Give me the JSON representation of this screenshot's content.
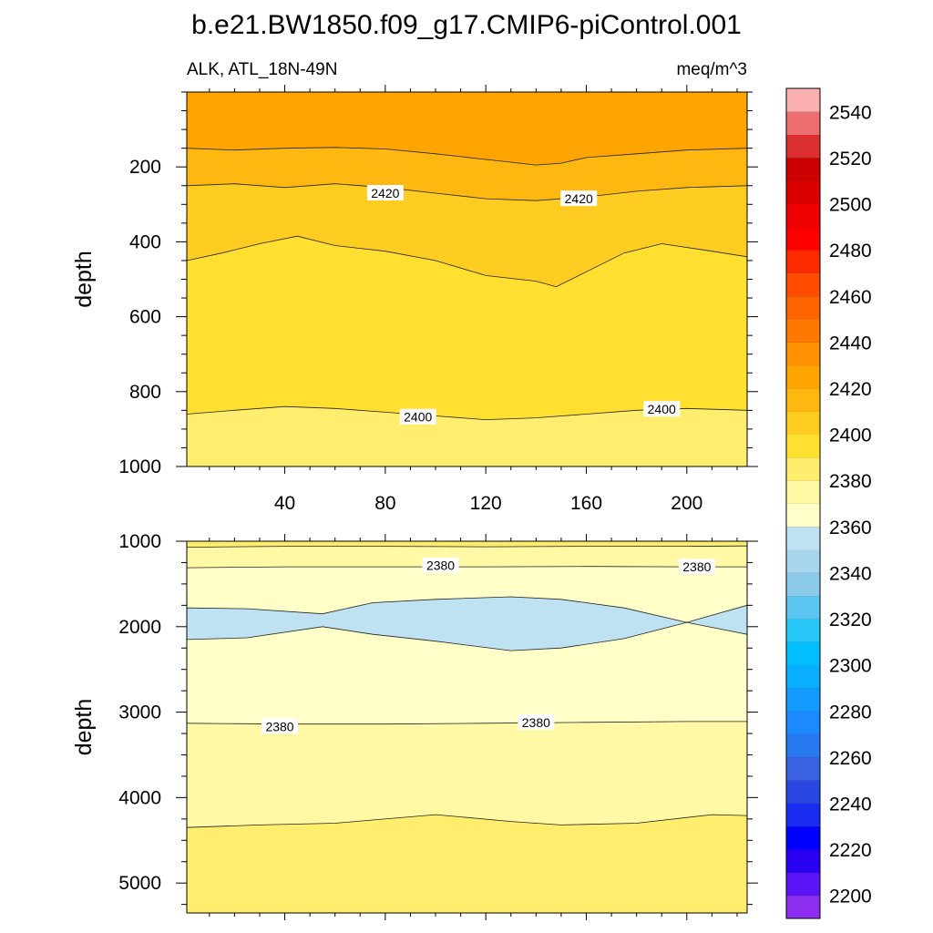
{
  "figure": {
    "title": "b.e21.BW1850.f09_g17.CMIP6-piControl.001",
    "left_string": "ALK, ATL_18N-49N",
    "right_string": "meq/m^3"
  },
  "chart_data": {
    "type": "heatmap",
    "title": "b.e21.BW1850.f09_g17.CMIP6-piControl.001",
    "subtitle_left": "ALK, ATL_18N-49N",
    "units": "meq/m^3",
    "x_range": [
      1,
      224
    ],
    "x_ticks": [
      40,
      80,
      120,
      160,
      200
    ],
    "x_tick_labels": [
      "40",
      "80",
      "120",
      "160",
      "200"
    ],
    "colorbar": {
      "levels": [
        2200,
        2210,
        2220,
        2230,
        2240,
        2250,
        2260,
        2270,
        2280,
        2290,
        2300,
        2310,
        2320,
        2330,
        2340,
        2350,
        2360,
        2370,
        2380,
        2390,
        2400,
        2410,
        2420,
        2430,
        2440,
        2450,
        2460,
        2470,
        2480,
        2490,
        2500,
        2510,
        2520,
        2530,
        2540,
        2550
      ],
      "tick_labels": [
        "2200",
        "2220",
        "2240",
        "2260",
        "2280",
        "2300",
        "2320",
        "2340",
        "2360",
        "2380",
        "2400",
        "2420",
        "2440",
        "2460",
        "2480",
        "2500",
        "2520",
        "2540"
      ],
      "colors": [
        "#8c2df0",
        "#5a14f5",
        "#2a00f0",
        "#0000ff",
        "#1a2cf2",
        "#2846e0",
        "#3862e0",
        "#2878f0",
        "#1e88ff",
        "#149bff",
        "#0aaeff",
        "#00beff",
        "#28c8f8",
        "#5cc4f0",
        "#8ccaec",
        "#a8d6ee",
        "#bee2f2",
        "#ffffc8",
        "#fff8a4",
        "#ffee6e",
        "#ffe030",
        "#ffcc22",
        "#ffb810",
        "#ffa400",
        "#ff9000",
        "#ff7800",
        "#ff6400",
        "#ff4c00",
        "#ff2c00",
        "#ff0000",
        "#ee0000",
        "#dc0000",
        "#cc0000",
        "#dc3030",
        "#ec6e6e",
        "#fab0b0"
      ]
    },
    "panels": [
      {
        "name": "upper",
        "ylabel": "depth",
        "y_range": [
          0,
          1000
        ],
        "y_ticks": [
          200,
          400,
          600,
          800,
          1000
        ],
        "y_tick_labels": [
          "200",
          "400",
          "600",
          "800",
          "1000"
        ],
        "show_x_labels": true,
        "bands": [
          {
            "level": 2430,
            "color": "#ffa400"
          },
          {
            "level": 2420,
            "color": "#ffb810"
          },
          {
            "level": 2410,
            "color": "#ffcc22"
          },
          {
            "level": 2400,
            "color": "#ffe030"
          },
          {
            "level": 2390,
            "color": "#ffee6e"
          }
        ],
        "contours": [
          {
            "level": 2430,
            "x": [
              1,
              20,
              40,
              60,
              80,
              100,
              120,
              140,
              150,
              160,
              180,
              200,
              224
            ],
            "y": [
              150,
              155,
              150,
              148,
              152,
              165,
              180,
              195,
              190,
              175,
              165,
              155,
              150
            ]
          },
          {
            "level": 2420,
            "x": [
              1,
              20,
              40,
              60,
              80,
              100,
              120,
              140,
              160,
              180,
              200,
              224
            ],
            "y": [
              250,
              245,
              255,
              245,
              255,
              270,
              285,
              290,
              280,
              265,
              255,
              250
            ]
          },
          {
            "level": 2410,
            "x": [
              1,
              15,
              30,
              45,
              60,
              80,
              100,
              120,
              140,
              148,
              160,
              175,
              190,
              210,
              224
            ],
            "y": [
              450,
              430,
              405,
              385,
              410,
              425,
              450,
              490,
              505,
              520,
              480,
              430,
              405,
              425,
              440
            ]
          },
          {
            "level": 2400,
            "x": [
              1,
              20,
              40,
              60,
              80,
              100,
              120,
              140,
              160,
              180,
              200,
              224
            ],
            "y": [
              860,
              850,
              840,
              845,
              855,
              865,
              875,
              870,
              860,
              850,
              845,
              850
            ]
          }
        ],
        "contour_labels": [
          {
            "text": "2420",
            "x": 80,
            "y": 270
          },
          {
            "text": "2420",
            "x": 157,
            "y": 285
          },
          {
            "text": "2400",
            "x": 93,
            "y": 868
          },
          {
            "text": "2400",
            "x": 190,
            "y": 847
          }
        ]
      },
      {
        "name": "lower",
        "ylabel": "depth",
        "y_range": [
          1000,
          5350
        ],
        "y_ticks": [
          1000,
          2000,
          3000,
          4000,
          5000
        ],
        "y_tick_labels": [
          "1000",
          "2000",
          "3000",
          "4000",
          "5000"
        ],
        "show_x_labels": false,
        "bands": [
          {
            "level": 2390,
            "color": "#ffee6e"
          },
          {
            "level": 2380,
            "color": "#fff8a4"
          },
          {
            "level": 2370,
            "color": "#ffffc8"
          },
          {
            "level": 2360,
            "color": "#bee2f2"
          },
          {
            "level": 2370,
            "color": "#ffffc8"
          },
          {
            "level": 2380,
            "color": "#fff8a4"
          },
          {
            "level": 2390,
            "color": "#ffee6e"
          }
        ],
        "contours": [
          {
            "level": 2390,
            "x": [
              1,
              40,
              80,
              120,
              160,
              200,
              224
            ],
            "y": [
              1070,
              1060,
              1060,
              1065,
              1060,
              1060,
              1055
            ]
          },
          {
            "level": 2380,
            "x": [
              1,
              40,
              80,
              120,
              160,
              200,
              224
            ],
            "y": [
              1310,
              1300,
              1300,
              1300,
              1295,
              1300,
              1300
            ]
          },
          {
            "level": 2370,
            "x": [
              1,
              25,
              55,
              75,
              100,
              130,
              150,
              175,
              200,
              224
            ],
            "y": [
              1780,
              1790,
              1850,
              1720,
              1680,
              1650,
              1680,
              1780,
              1950,
              1750
            ]
          },
          {
            "level": 2360,
            "x": [
              1,
              25,
              55,
              75,
              100,
              130,
              150,
              175,
              200,
              224
            ],
            "y": [
              2150,
              2130,
              2000,
              2090,
              2170,
              2280,
              2250,
              2140,
              1950,
              2090
            ]
          },
          {
            "level": 2380,
            "x": [
              1,
              40,
              80,
              120,
              160,
              200,
              224
            ],
            "y": [
              3130,
              3140,
              3140,
              3130,
              3120,
              3110,
              3110
            ]
          },
          {
            "level": 2390,
            "x": [
              1,
              30,
              60,
              100,
              130,
              150,
              180,
              210,
              224
            ],
            "y": [
              4350,
              4320,
              4300,
              4200,
              4280,
              4320,
              4300,
              4200,
              4210
            ]
          }
        ],
        "contour_labels": [
          {
            "text": "2380",
            "x": 102,
            "y": 1285
          },
          {
            "text": "2380",
            "x": 204,
            "y": 1300
          },
          {
            "text": "2380",
            "x": 38,
            "y": 3170
          },
          {
            "text": "2380",
            "x": 140,
            "y": 3120
          }
        ]
      }
    ]
  }
}
